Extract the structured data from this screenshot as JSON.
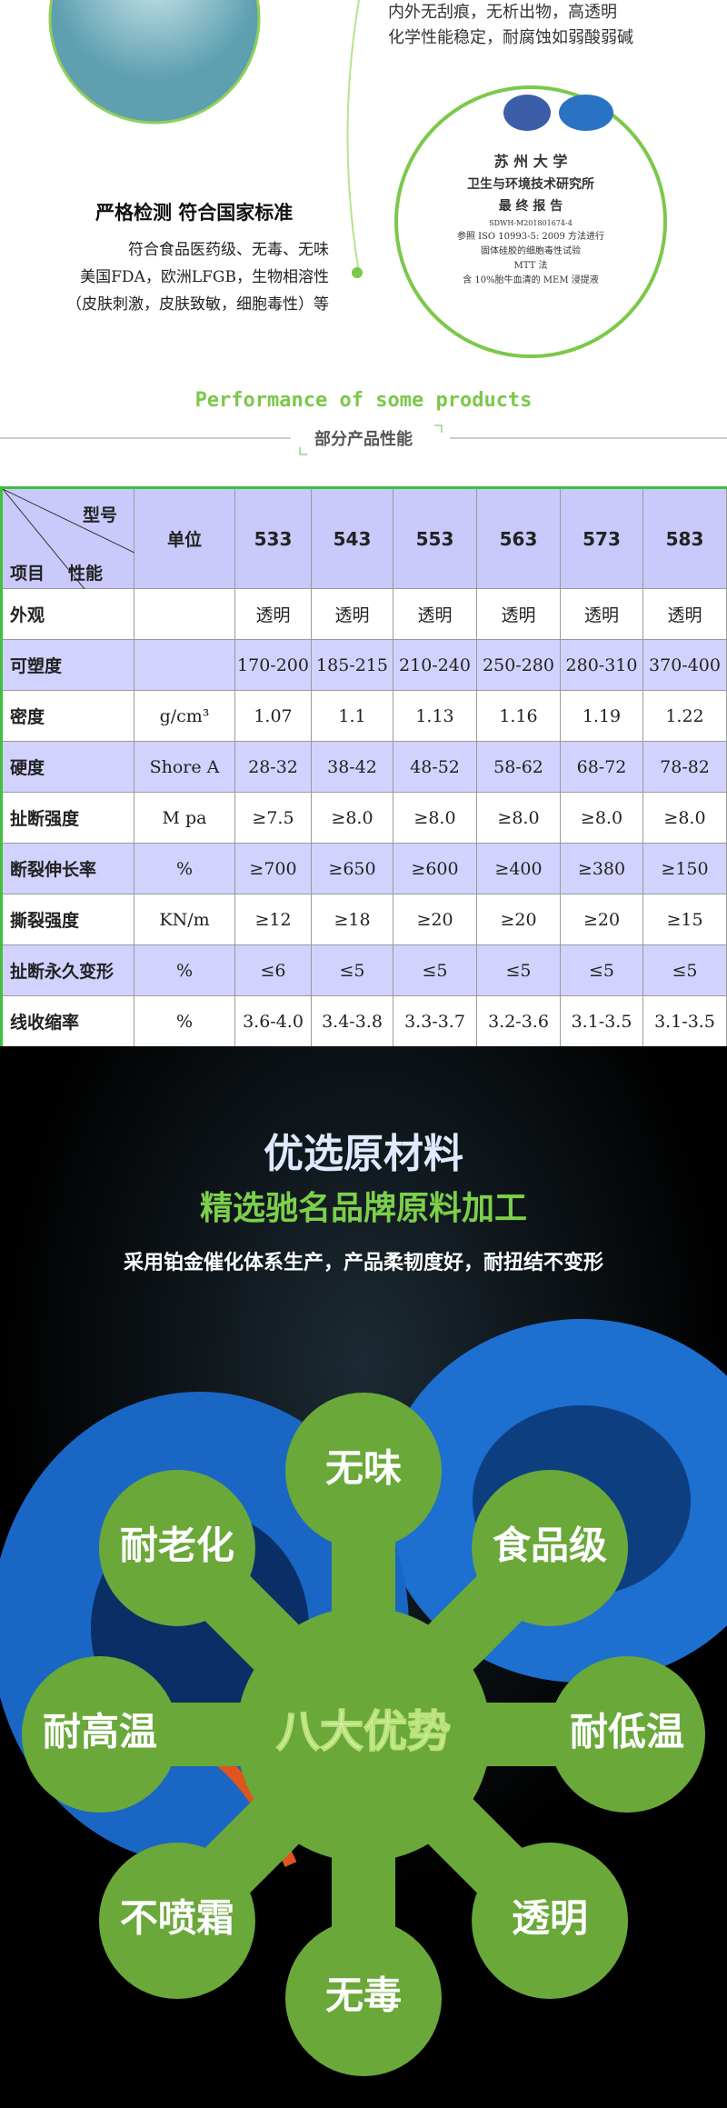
{
  "top": {
    "feature_lines": [
      "内外无刮痕，无析出物，高透明",
      "化学性能稳定，耐腐蚀如弱酸弱碱"
    ],
    "heading": "严格检测  符合国家标准",
    "body_lines": [
      "符合食品医药级、无毒、无味",
      "美国FDA，欧洲LFGB，生物相溶性",
      "（皮肤刺激，皮肤致敏，细胞毒性）等"
    ],
    "certificate": {
      "lines": [
        "苏 州 大 学",
        "卫生与环境技术研究所",
        "最 终 报 告",
        "SDWH-M201801674-4",
        "参照 ISO 10993-5: 2009 方法进行",
        "固体硅胶的细胞毒性试验",
        "MTT 法",
        "含 10%胎牛血清的 MEM 浸提液"
      ]
    }
  },
  "performance": {
    "title_en": "Performance of some products",
    "title_cn": "部分产品性能"
  },
  "table": {
    "corner": {
      "top": "型号",
      "middle": "性能",
      "bottom": "项目"
    },
    "unit_header": "单位",
    "models": [
      "533",
      "543",
      "553",
      "563",
      "573",
      "583"
    ],
    "rows": [
      {
        "label": "外观",
        "unit": "",
        "values": [
          "透明",
          "透明",
          "透明",
          "透明",
          "透明",
          "透明"
        ]
      },
      {
        "label": "可塑度",
        "unit": "",
        "values": [
          "170-200",
          "185-215",
          "210-240",
          "250-280",
          "280-310",
          "370-400"
        ]
      },
      {
        "label": "密度",
        "unit": "g/cm³",
        "values": [
          "1.07",
          "1.1",
          "1.13",
          "1.16",
          "1.19",
          "1.22"
        ]
      },
      {
        "label": "硬度",
        "unit": "Shore A",
        "values": [
          "28-32",
          "38-42",
          "48-52",
          "58-62",
          "68-72",
          "78-82"
        ]
      },
      {
        "label": "扯断强度",
        "unit": "M pa",
        "values": [
          "≥7.5",
          "≥8.0",
          "≥8.0",
          "≥8.0",
          "≥8.0",
          "≥8.0"
        ]
      },
      {
        "label": "断裂伸长率",
        "unit": "%",
        "values": [
          "≥700",
          "≥650",
          "≥600",
          "≥400",
          "≥380",
          "≥150"
        ]
      },
      {
        "label": "撕裂强度",
        "unit": "KN/m",
        "values": [
          "≥12",
          "≥18",
          "≥20",
          "≥20",
          "≥20",
          "≥15"
        ]
      },
      {
        "label": "扯断永久变形",
        "unit": "%",
        "values": [
          "≤6",
          "≤5",
          "≤5",
          "≤5",
          "≤5",
          "≤5"
        ]
      },
      {
        "label": "线收缩率",
        "unit": "%",
        "values": [
          "3.6-4.0",
          "3.4-3.8",
          "3.3-3.7",
          "3.2-3.6",
          "3.1-3.5",
          "3.1-3.5"
        ]
      }
    ]
  },
  "material": {
    "title": "优选原材料",
    "subtitle": "精选驰名品牌原料加工",
    "description": "采用铂金催化体系生产，产品柔韧度好，耐扭结不变形",
    "center": "八大优势",
    "petals": [
      "无味",
      "食品级",
      "耐低温",
      "透明",
      "无毒",
      "不喷霜",
      "耐高温",
      "耐老化"
    ]
  }
}
